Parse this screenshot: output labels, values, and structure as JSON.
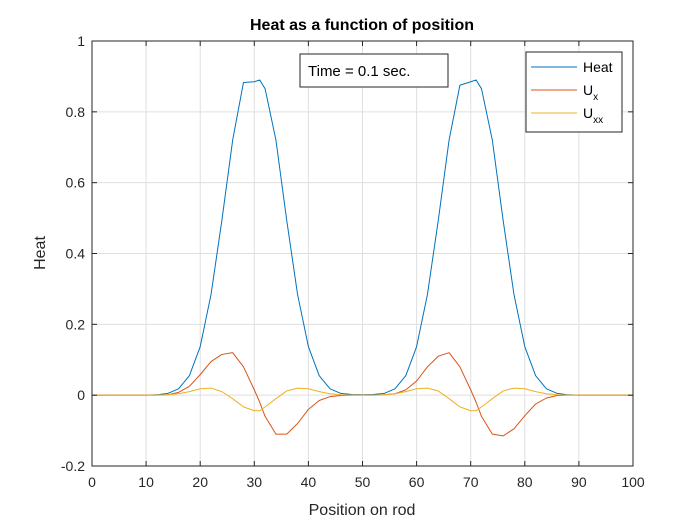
{
  "chart_data": {
    "type": "line",
    "title": "Heat as a function of position",
    "xlabel": "Position on rod",
    "ylabel": "Heat",
    "xlim": [
      0,
      100
    ],
    "ylim": [
      -0.2,
      1
    ],
    "xticks": [
      0,
      10,
      20,
      30,
      40,
      50,
      60,
      70,
      80,
      90,
      100
    ],
    "yticks": [
      -0.2,
      0,
      0.2,
      0.4,
      0.6,
      0.8,
      1
    ],
    "xtick_labels": [
      "0",
      "10",
      "20",
      "30",
      "40",
      "50",
      "60",
      "70",
      "80",
      "90",
      "100"
    ],
    "ytick_labels": [
      "-0.2",
      "0",
      "0.2",
      "0.4",
      "0.6",
      "0.8",
      "1"
    ],
    "grid": true,
    "legend_position": "top-right",
    "annotation": "Time = 0.1 sec.",
    "x": [
      0,
      2,
      4,
      6,
      8,
      10,
      12,
      14,
      16,
      18,
      20,
      22,
      24,
      26,
      28,
      30,
      31,
      32,
      34,
      36,
      38,
      40,
      42,
      44,
      46,
      48,
      50,
      52,
      54,
      56,
      58,
      60,
      62,
      64,
      66,
      68,
      70,
      71,
      72,
      74,
      76,
      78,
      80,
      82,
      84,
      86,
      88,
      90,
      92,
      94,
      96,
      98,
      100
    ],
    "series": [
      {
        "name": "Heat",
        "label_main": "Heat",
        "label_sub": "",
        "color": "#0072BD",
        "values": [
          0,
          0,
          0,
          0,
          0,
          0,
          0.001,
          0.005,
          0.018,
          0.055,
          0.137,
          0.284,
          0.493,
          0.72,
          0.883,
          0.885,
          0.89,
          0.865,
          0.72,
          0.493,
          0.284,
          0.137,
          0.055,
          0.018,
          0.005,
          0.002,
          0.001,
          0.002,
          0.005,
          0.018,
          0.055,
          0.137,
          0.284,
          0.493,
          0.72,
          0.875,
          0.885,
          0.89,
          0.865,
          0.72,
          0.493,
          0.284,
          0.137,
          0.055,
          0.018,
          0.005,
          0.001,
          0,
          0,
          0,
          0,
          0,
          0
        ]
      },
      {
        "name": "Ux",
        "label_main": "U",
        "label_sub": "x",
        "color": "#D95319",
        "values": [
          0,
          0,
          0,
          0,
          0,
          0,
          0,
          0.001,
          0.008,
          0.025,
          0.058,
          0.095,
          0.115,
          0.12,
          0.08,
          0.015,
          -0.02,
          -0.06,
          -0.11,
          -0.11,
          -0.08,
          -0.04,
          -0.015,
          -0.004,
          -0.001,
          0,
          0,
          0,
          0.001,
          0.004,
          0.015,
          0.04,
          0.08,
          0.11,
          0.12,
          0.08,
          0.015,
          -0.02,
          -0.06,
          -0.11,
          -0.115,
          -0.095,
          -0.058,
          -0.025,
          -0.008,
          -0.001,
          0,
          0,
          0,
          0,
          0,
          0,
          0
        ]
      },
      {
        "name": "Uxx",
        "label_main": "U",
        "label_sub": "xx",
        "color": "#EDB120",
        "values": [
          0,
          0,
          0,
          0,
          0,
          0,
          0,
          0.001,
          0.004,
          0.01,
          0.018,
          0.02,
          0.01,
          -0.01,
          -0.033,
          -0.044,
          -0.044,
          -0.033,
          -0.01,
          0.012,
          0.02,
          0.018,
          0.01,
          0.004,
          0.001,
          0,
          0,
          0,
          0.001,
          0.004,
          0.01,
          0.018,
          0.02,
          0.012,
          -0.01,
          -0.033,
          -0.044,
          -0.044,
          -0.033,
          -0.01,
          0.012,
          0.02,
          0.018,
          0.01,
          0.004,
          0.001,
          0,
          0,
          0,
          0,
          0,
          0,
          0
        ]
      }
    ]
  }
}
